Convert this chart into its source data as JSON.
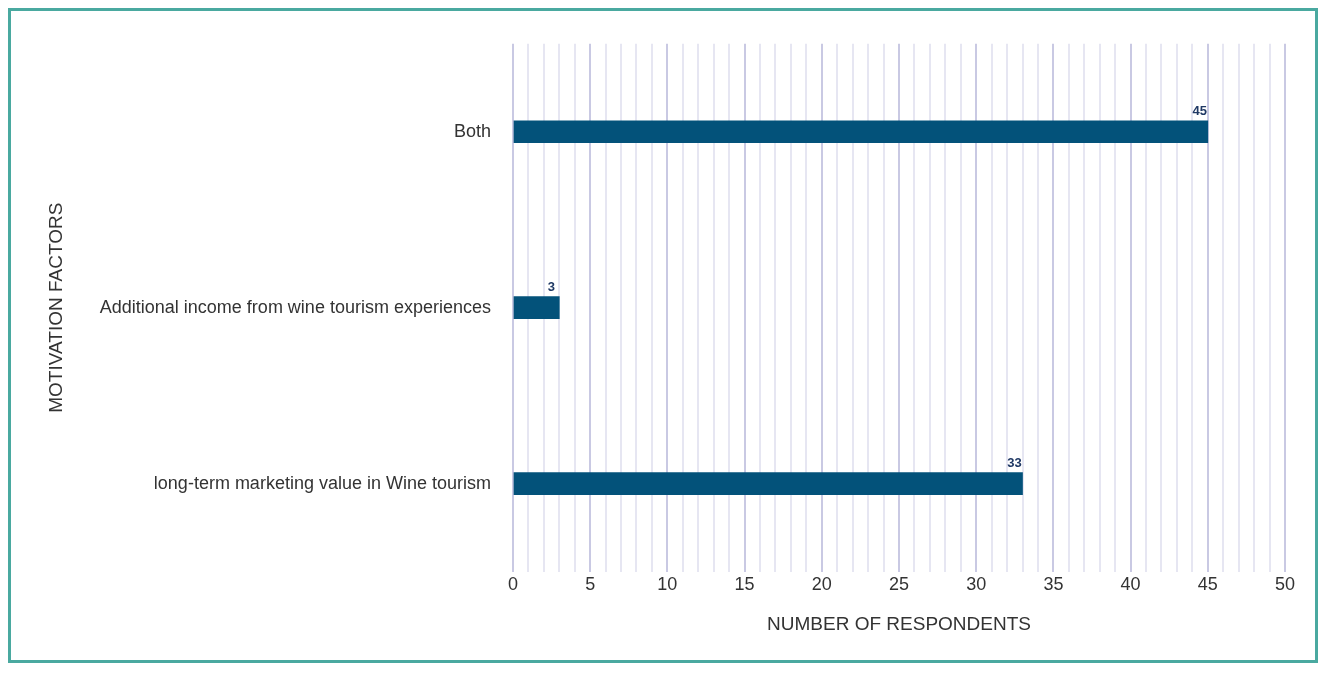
{
  "chart_data": {
    "type": "bar",
    "orientation": "horizontal",
    "xlabel": "NUMBER OF RESPONDENTS",
    "ylabel": "MOTIVATION FACTORS",
    "categories": [
      "Both",
      "Additional income from wine tourism experiences",
      "long-term marketing value in Wine tourism"
    ],
    "values": [
      45,
      3,
      33
    ],
    "data_labels": true,
    "color": "#03527a",
    "xlim": [
      0,
      50
    ],
    "xticks": [
      0,
      {
        "value": 1,
        "label": null
      },
      {
        "value": 2,
        "label": null
      },
      {
        "value": 3,
        "label": null
      },
      {
        "value": 4,
        "label": null
      },
      5,
      {
        "value": 6,
        "label": null
      },
      {
        "value": 7,
        "label": null
      },
      {
        "value": 8,
        "label": null
      },
      {
        "value": 9,
        "label": null
      },
      10,
      {
        "value": 11,
        "label": null
      },
      {
        "value": 12,
        "label": null
      },
      {
        "value": 13,
        "label": null
      },
      {
        "value": 14,
        "label": null
      },
      15,
      {
        "value": 16,
        "label": null
      },
      {
        "value": 17,
        "label": null
      },
      {
        "value": 18,
        "label": null
      },
      {
        "value": 19,
        "label": null
      },
      20,
      {
        "value": 21,
        "label": null
      },
      {
        "value": 22,
        "label": null
      },
      {
        "value": 23,
        "label": null
      },
      {
        "value": 24,
        "label": null
      },
      25,
      {
        "value": 26,
        "label": null
      },
      {
        "value": 27,
        "label": null
      },
      {
        "value": 28,
        "label": null
      },
      {
        "value": 29,
        "label": null
      },
      30,
      {
        "value": 31,
        "label": null
      },
      {
        "value": 32,
        "label": null
      },
      {
        "value": 33,
        "label": null
      },
      {
        "value": 34,
        "label": null
      },
      35,
      {
        "value": 36,
        "label": null
      },
      {
        "value": 37,
        "label": null
      },
      {
        "value": 38,
        "label": null
      },
      {
        "value": 39,
        "label": null
      },
      40,
      {
        "value": 41,
        "label": null
      },
      {
        "value": 42,
        "label": null
      },
      {
        "value": 43,
        "label": null
      },
      {
        "value": 44,
        "label": null
      },
      45,
      {
        "value": 46,
        "label": null
      },
      {
        "value": 47,
        "label": null
      },
      {
        "value": 48,
        "label": null
      },
      {
        "value": 49,
        "label": null
      },
      50
    ],
    "grid": "x",
    "legend": false
  }
}
